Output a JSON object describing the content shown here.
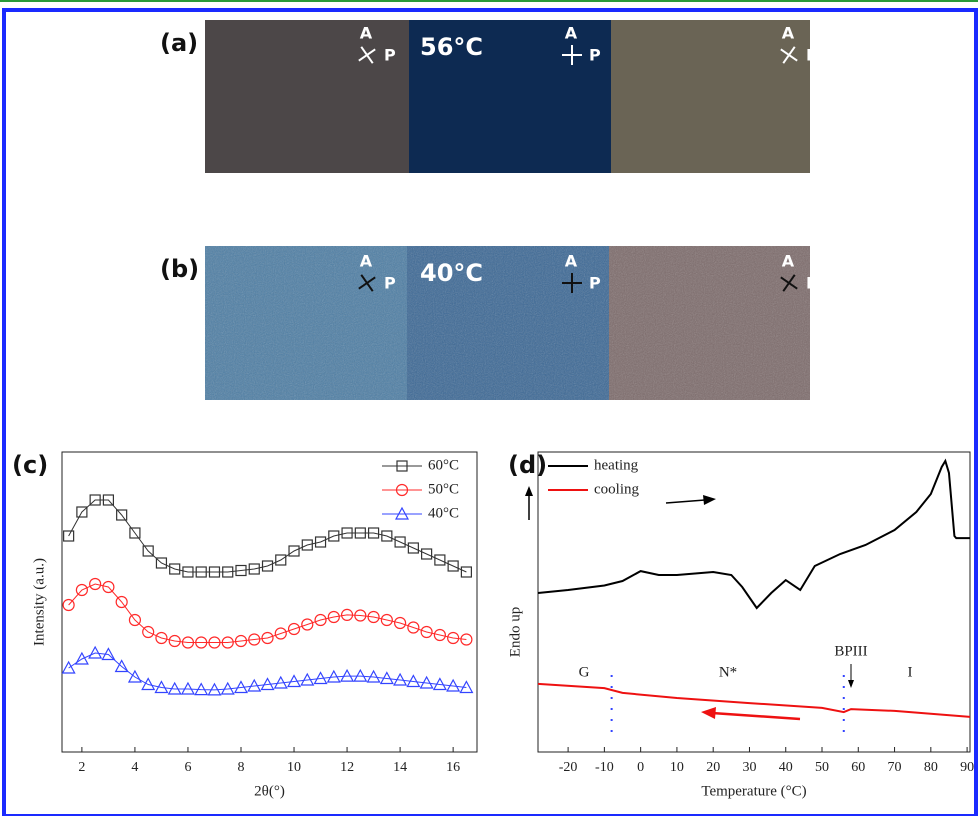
{
  "figure": {
    "polarizer": {
      "analyzer": "A",
      "polarizer": "P"
    },
    "panel_a": {
      "label": "(a)",
      "temperature": "56°C"
    },
    "panel_b": {
      "label": "(b)",
      "temperature": "40°C"
    }
  },
  "chart_data": [
    {
      "type": "line",
      "panel_label": "(c)",
      "x_label": "2θ(°)",
      "y_label": "Intensity (a.u.)",
      "xlim": [
        1.25,
        16.9
      ],
      "ylim": [
        0,
        100
      ],
      "xticks": [
        2,
        4,
        6,
        8,
        10,
        12,
        14,
        16
      ],
      "legend": "upper right",
      "x": [
        1.5,
        2,
        2.5,
        3,
        3.5,
        4,
        4.5,
        5,
        5.5,
        6,
        6.5,
        7,
        7.5,
        8,
        8.5,
        9,
        9.5,
        10,
        10.5,
        11,
        11.5,
        12,
        12.5,
        13,
        13.5,
        14,
        14.5,
        15,
        15.5,
        16,
        16.5
      ],
      "series": [
        {
          "name": "60°C",
          "color": "#333333",
          "marker": "square",
          "values": [
            72,
            80,
            84,
            84,
            79,
            73,
            67,
            63,
            61,
            60,
            60,
            60,
            60,
            60.5,
            61,
            62,
            64,
            67,
            69,
            70,
            72,
            73,
            73,
            73,
            72,
            70,
            68,
            66,
            64,
            62,
            60
          ]
        },
        {
          "name": "50°C",
          "color": "#ff2a2a",
          "marker": "circle",
          "values": [
            49,
            54,
            56,
            55,
            50,
            44,
            40,
            38,
            37,
            36.5,
            36.5,
            36.5,
            36.5,
            37,
            37.5,
            38,
            39.5,
            41,
            42.5,
            44,
            45,
            45.7,
            45.5,
            45,
            44,
            43,
            41.5,
            40,
            39,
            38,
            37.5
          ]
        },
        {
          "name": "40°C",
          "color": "#3344ff",
          "marker": "triangle",
          "values": [
            28,
            31,
            33,
            32.5,
            28.5,
            25,
            22.5,
            21.5,
            21,
            21,
            20.8,
            20.7,
            21,
            21.5,
            22,
            22.5,
            23,
            23.5,
            24,
            24.5,
            25,
            25.3,
            25.3,
            25,
            24.5,
            24,
            23.5,
            23,
            22.5,
            22,
            21.5
          ]
        }
      ]
    },
    {
      "type": "line",
      "panel_label": "(d)",
      "x_label": "Temperature (°C)",
      "y_label": "Endo up",
      "xlim": [
        -28.3,
        90.8
      ],
      "ylim": [
        0,
        100
      ],
      "xticks": [
        -20,
        -10,
        0,
        10,
        20,
        30,
        40,
        50,
        60,
        70,
        80,
        90
      ],
      "legend": "upper left",
      "series": [
        {
          "name": "heating",
          "color": "#000000",
          "x": [
            -28.3,
            -20,
            -10,
            -5,
            0,
            5,
            10,
            20,
            25,
            28,
            32,
            36,
            40,
            44,
            48,
            55,
            62,
            70,
            76,
            80,
            83,
            84,
            85,
            86.5,
            87,
            90.8
          ],
          "values": [
            53,
            54,
            55.5,
            57,
            60.3,
            59,
            59,
            60,
            59,
            55,
            48,
            53,
            57.3,
            54,
            62,
            66,
            69,
            74,
            80,
            86,
            95,
            97,
            93,
            72,
            71.3,
            71.3
          ]
        },
        {
          "name": "cooling",
          "color": "#ee1111",
          "x": [
            -28.3,
            -10,
            -5,
            10,
            30,
            50,
            56,
            58,
            70,
            90.8
          ],
          "values": [
            22.7,
            21.3,
            19.7,
            18,
            16.3,
            14.7,
            13.3,
            14.3,
            13.7,
            11.7
          ]
        }
      ],
      "transition_temperatures": [
        -8,
        56
      ],
      "annotations": [
        "G",
        "N*",
        "BPIII",
        "I"
      ]
    }
  ]
}
